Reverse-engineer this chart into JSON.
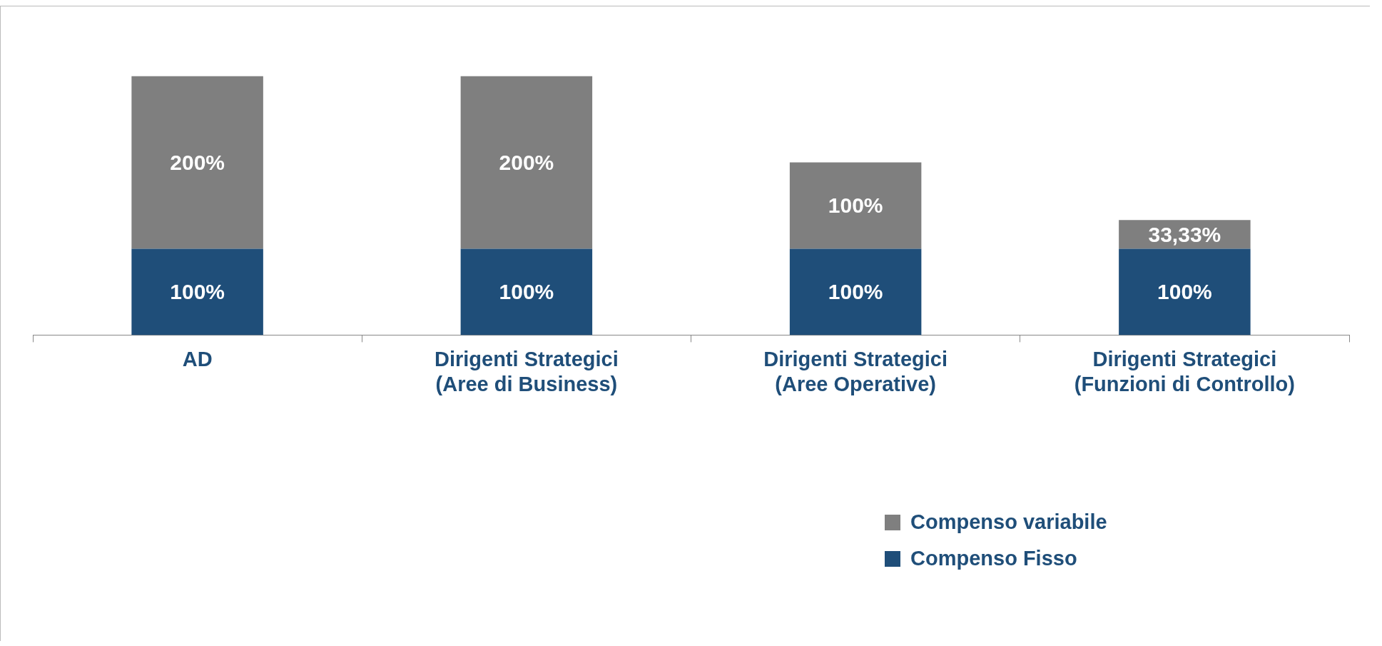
{
  "chart_data": {
    "type": "bar",
    "stacked": true,
    "categories": [
      "AD",
      "Dirigenti Strategici\n(Aree di Business)",
      "Dirigenti Strategici\n(Aree Operative)",
      "Dirigenti Strategici\n(Funzioni di Controllo)"
    ],
    "series": [
      {
        "name": "Compenso Fisso",
        "color": "#1f4e79",
        "values": [
          100,
          100,
          100,
          100
        ],
        "value_labels": [
          "100%",
          "100%",
          "100%",
          "100%"
        ]
      },
      {
        "name": "Compenso variabile",
        "color": "#7f7f7f",
        "values": [
          200,
          200,
          100,
          33.33
        ],
        "value_labels": [
          "200%",
          "200%",
          "100%",
          "33,33%"
        ]
      }
    ],
    "ylim": [
      0,
      380
    ],
    "tick_labels": "x",
    "legend": "bottom right"
  }
}
